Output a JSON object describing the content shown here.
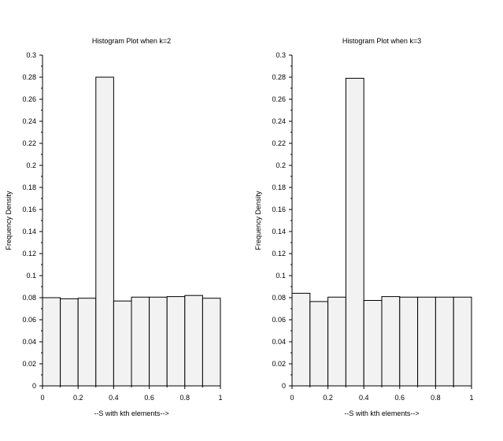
{
  "chart_data": [
    {
      "type": "bar",
      "title": "Histogram Plot when k=2",
      "xlabel": "--S with kth elements-->",
      "ylabel": "Frequency Density",
      "xlim": [
        0,
        1
      ],
      "ylim": [
        0,
        0.3
      ],
      "x_ticks": [
        "0",
        "0.2",
        "0.4",
        "0.6",
        "0.8",
        "1"
      ],
      "y_ticks": [
        "0",
        "0.02",
        "0.04",
        "0.06",
        "0.08",
        "0.1",
        "0.12",
        "0.14",
        "0.16",
        "0.18",
        "0.2",
        "0.22",
        "0.24",
        "0.26",
        "0.28",
        "0.3"
      ],
      "bin_edges": [
        0,
        0.1,
        0.2,
        0.3,
        0.4,
        0.5,
        0.6,
        0.7,
        0.8,
        0.9,
        1.0
      ],
      "values": [
        0.08,
        0.079,
        0.0795,
        0.28,
        0.077,
        0.0805,
        0.0805,
        0.081,
        0.082,
        0.0795
      ],
      "grid": false
    },
    {
      "type": "bar",
      "title": "Histogram Plot when k=3",
      "xlabel": "--S with kth elements-->",
      "ylabel": "Frequency Density",
      "xlim": [
        0,
        1
      ],
      "ylim": [
        0,
        0.3
      ],
      "x_ticks": [
        "0",
        "0.2",
        "0.4",
        "0.6",
        "0.8",
        "1"
      ],
      "y_ticks": [
        "0",
        "0.02",
        "0.04",
        "0.06",
        "0.08",
        "0.1",
        "0.12",
        "0.14",
        "0.16",
        "0.18",
        "0.2",
        "0.22",
        "0.24",
        "0.26",
        "0.28",
        "0.3"
      ],
      "bin_edges": [
        0,
        0.1,
        0.2,
        0.3,
        0.4,
        0.5,
        0.6,
        0.7,
        0.8,
        0.9,
        1.0
      ],
      "values": [
        0.084,
        0.0765,
        0.0805,
        0.279,
        0.0775,
        0.081,
        0.0805,
        0.0805,
        0.0805,
        0.0805
      ],
      "grid": false
    }
  ]
}
